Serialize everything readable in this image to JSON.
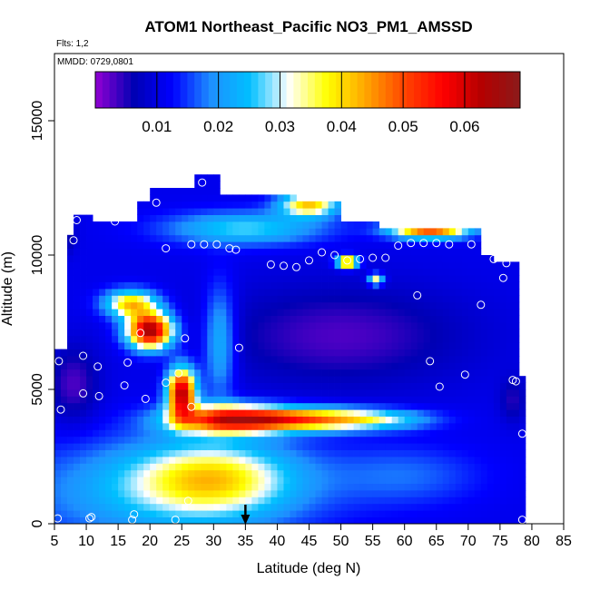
{
  "chart_data": {
    "type": "heatmap",
    "title": "ATOM1 Northeast_Pacific NO3_PM1_AMSSD",
    "annotations": {
      "flights": "Flts: 1,2",
      "dates": "MMDD: 0729,0801"
    },
    "xlabel": "Latitude (deg N)",
    "ylabel": "Altitude (m)",
    "xlim": [
      5,
      85
    ],
    "ylim": [
      0,
      17500
    ],
    "x_ticks": [
      5,
      10,
      15,
      20,
      25,
      30,
      35,
      40,
      45,
      50,
      55,
      60,
      65,
      70,
      75,
      80,
      85
    ],
    "x_tick_labels": [
      "5",
      "10",
      "15",
      "20",
      "25",
      "30",
      "35",
      "40",
      "45",
      "50",
      "55",
      "60",
      "65",
      "70",
      "75",
      "80",
      "85"
    ],
    "y_ticks": [
      0,
      5000,
      10000,
      15000
    ],
    "y_tick_labels": [
      "0",
      "5000",
      "10000",
      "15000"
    ],
    "colorbar": {
      "range": [
        0.0,
        0.069
      ],
      "ticks": [
        0.01,
        0.02,
        0.03,
        0.04,
        0.05,
        0.06
      ],
      "tick_labels": [
        "0.01",
        "0.02",
        "0.03",
        "0.04",
        "0.05",
        "0.06"
      ],
      "colors": [
        "#9400d3",
        "#0000b4",
        "#0000ff",
        "#1e90ff",
        "#00bfff",
        "#ffffff",
        "#ffff00",
        "#ffa500",
        "#ff4500",
        "#ff0000",
        "#b40000",
        "#8b1a1a"
      ]
    },
    "arrow_marker_latitude": 35,
    "grid": false,
    "field": {
      "description_of_values": "gridded NO3 concentration, interpolated",
      "lat_range": [
        5,
        79
      ],
      "alt_range": [
        0,
        13000
      ]
    },
    "observation_points": [
      [
        5.5,
        200
      ],
      [
        10.5,
        200
      ],
      [
        10.8,
        250
      ],
      [
        17.5,
        350
      ],
      [
        17.2,
        150
      ],
      [
        24,
        150
      ],
      [
        26,
        850
      ],
      [
        6,
        4250
      ],
      [
        9.5,
        4850
      ],
      [
        12,
        4750
      ],
      [
        5.7,
        6050
      ],
      [
        9.5,
        6250
      ],
      [
        11.8,
        5850
      ],
      [
        16.5,
        6000
      ],
      [
        16,
        5150
      ],
      [
        19.3,
        4650
      ],
      [
        22.5,
        5250
      ],
      [
        24.5,
        5600
      ],
      [
        26.5,
        4350
      ],
      [
        25.5,
        6900
      ],
      [
        18.5,
        7100
      ],
      [
        34,
        6550
      ],
      [
        65.5,
        5100
      ],
      [
        69.5,
        5550
      ],
      [
        64,
        6050
      ],
      [
        77,
        5350
      ],
      [
        77.5,
        5300
      ],
      [
        78.5,
        3350
      ],
      [
        78.5,
        150
      ],
      [
        62,
        8500
      ],
      [
        72,
        8150
      ],
      [
        75.5,
        9150
      ],
      [
        8,
        10550
      ],
      [
        8.5,
        11300
      ],
      [
        14.5,
        11250
      ],
      [
        21,
        11950
      ],
      [
        22.5,
        10250
      ],
      [
        26.5,
        10400
      ],
      [
        28.5,
        10400
      ],
      [
        30.5,
        10400
      ],
      [
        32.5,
        10250
      ],
      [
        33.5,
        10200
      ],
      [
        28.2,
        12700
      ],
      [
        35.5,
        12650
      ],
      [
        39,
        9650
      ],
      [
        41,
        9600
      ],
      [
        43,
        9550
      ],
      [
        45,
        9800
      ],
      [
        47,
        10100
      ],
      [
        49,
        10000
      ],
      [
        51,
        9800
      ],
      [
        53,
        9850
      ],
      [
        55,
        9900
      ],
      [
        57,
        9900
      ],
      [
        59,
        10350
      ],
      [
        61,
        10450
      ],
      [
        63,
        10450
      ],
      [
        65,
        10450
      ],
      [
        67,
        10400
      ],
      [
        70.5,
        10400
      ],
      [
        74,
        9850
      ],
      [
        76,
        9700
      ]
    ]
  }
}
